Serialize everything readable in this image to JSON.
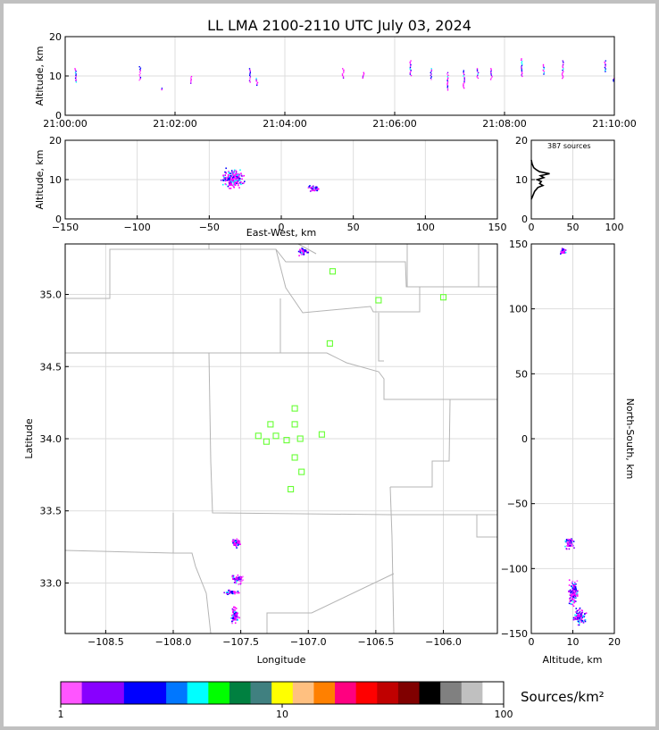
{
  "figure": {
    "title": "LL LMA 2100-2110 UTC July 03, 2024"
  },
  "chart_data": [
    {
      "panel": "altitude-time",
      "type": "scatter",
      "ylabel": "Altitude, km",
      "ylim": [
        0,
        20
      ],
      "yticks": [
        "0",
        "10",
        "20"
      ],
      "xticks": [
        "21:00:00",
        "21:02:00",
        "21:04:00",
        "21:06:00",
        "21:08:00",
        "21:10:00"
      ],
      "xlim_minutes": [
        0,
        10
      ],
      "grid": true,
      "clusters": [
        {
          "t": 0.18,
          "zmin": 8.5,
          "zmax": 12.0
        },
        {
          "t": 1.35,
          "zmin": 9.0,
          "zmax": 12.5
        },
        {
          "t": 1.75,
          "zmin": 6.5,
          "zmax": 7.0
        },
        {
          "t": 2.28,
          "zmin": 8.0,
          "zmax": 10.0
        },
        {
          "t": 3.35,
          "zmin": 8.5,
          "zmax": 12.0
        },
        {
          "t": 3.48,
          "zmin": 7.5,
          "zmax": 9.5
        },
        {
          "t": 5.05,
          "zmin": 9.5,
          "zmax": 12.0
        },
        {
          "t": 5.42,
          "zmin": 9.5,
          "zmax": 11.0
        },
        {
          "t": 6.28,
          "zmin": 10.0,
          "zmax": 14.0
        },
        {
          "t": 6.65,
          "zmin": 9.0,
          "zmax": 12.0
        },
        {
          "t": 6.95,
          "zmin": 6.5,
          "zmax": 11.0
        },
        {
          "t": 7.25,
          "zmin": 7.0,
          "zmax": 11.5
        },
        {
          "t": 7.5,
          "zmin": 9.5,
          "zmax": 12.0
        },
        {
          "t": 7.75,
          "zmin": 9.0,
          "zmax": 12.0
        },
        {
          "t": 8.3,
          "zmin": 10.0,
          "zmax": 14.5
        },
        {
          "t": 8.7,
          "zmin": 10.5,
          "zmax": 13.0
        },
        {
          "t": 9.05,
          "zmin": 9.5,
          "zmax": 14.0
        },
        {
          "t": 9.82,
          "zmin": 11.0,
          "zmax": 14.0
        },
        {
          "t": 9.98,
          "zmin": 8.5,
          "zmax": 9.5
        }
      ]
    },
    {
      "panel": "altitude-eastwest",
      "type": "scatter",
      "ylabel": "Altitude, km",
      "xlabel": "East-West, km",
      "ylim": [
        0,
        20
      ],
      "xlim": [
        -150,
        150
      ],
      "yticks": [
        "0",
        "10",
        "20"
      ],
      "xticks": [
        "−150",
        "−100",
        "−50",
        "0",
        "50",
        "100",
        "150"
      ],
      "grid": true,
      "clusters": [
        {
          "x": -34,
          "z": 10.5,
          "rx": 10,
          "rz": 3
        },
        {
          "x": -31,
          "z": 11.0,
          "rx": 2,
          "rz": 1
        },
        {
          "x": 22,
          "z": 8.0,
          "rx": 5,
          "rz": 1
        }
      ]
    },
    {
      "panel": "altitude-histogram",
      "type": "line",
      "annotation": "387 sources",
      "xlim": [
        0,
        100
      ],
      "ylim": [
        0,
        20
      ],
      "xticks": [
        "0",
        "50",
        "100"
      ],
      "yticks": [
        "0",
        "10",
        "20"
      ],
      "grid": true,
      "profile": [
        {
          "z": 5,
          "n": 0
        },
        {
          "z": 6,
          "n": 2
        },
        {
          "z": 7,
          "n": 4
        },
        {
          "z": 8,
          "n": 8
        },
        {
          "z": 8.5,
          "n": 14
        },
        {
          "z": 9,
          "n": 10
        },
        {
          "z": 9.5,
          "n": 12
        },
        {
          "z": 10,
          "n": 7
        },
        {
          "z": 10.5,
          "n": 15
        },
        {
          "z": 11,
          "n": 11
        },
        {
          "z": 11.5,
          "n": 22
        },
        {
          "z": 12,
          "n": 10
        },
        {
          "z": 12.5,
          "n": 6
        },
        {
          "z": 13,
          "n": 3
        },
        {
          "z": 14,
          "n": 1
        },
        {
          "z": 15,
          "n": 0
        }
      ]
    },
    {
      "panel": "plan-view",
      "type": "scatter",
      "xlabel": "Longitude",
      "ylabel": "Latitude",
      "xlim": [
        -108.8,
        -105.6
      ],
      "ylim": [
        32.65,
        35.35
      ],
      "xticks": [
        "−108.5",
        "−108.0",
        "−107.5",
        "−107.0",
        "−106.5",
        "−106.0"
      ],
      "yticks": [
        "33.0",
        "33.5",
        "34.0",
        "34.5",
        "35.0"
      ],
      "grid": true,
      "stations": [
        {
          "lon": -106.82,
          "lat": 35.16
        },
        {
          "lon": -106.48,
          "lat": 34.96
        },
        {
          "lon": -106.0,
          "lat": 34.98
        },
        {
          "lon": -106.84,
          "lat": 34.66
        },
        {
          "lon": -107.1,
          "lat": 34.21
        },
        {
          "lon": -107.28,
          "lat": 34.1
        },
        {
          "lon": -107.1,
          "lat": 34.1
        },
        {
          "lon": -107.37,
          "lat": 34.02
        },
        {
          "lon": -107.24,
          "lat": 34.02
        },
        {
          "lon": -107.31,
          "lat": 33.98
        },
        {
          "lon": -107.16,
          "lat": 33.99
        },
        {
          "lon": -107.06,
          "lat": 34.0
        },
        {
          "lon": -106.9,
          "lat": 34.03
        },
        {
          "lon": -107.1,
          "lat": 33.87
        },
        {
          "lon": -107.05,
          "lat": 33.77
        },
        {
          "lon": -107.13,
          "lat": 33.65
        }
      ],
      "clusters": [
        {
          "lon": -107.54,
          "lat": 33.28,
          "rlon": 0.05,
          "rlat": 0.04
        },
        {
          "lon": -107.53,
          "lat": 33.03,
          "rlon": 0.06,
          "rlat": 0.04
        },
        {
          "lon": -107.58,
          "lat": 32.94,
          "rlon": 0.07,
          "rlat": 0.02
        },
        {
          "lon": -107.55,
          "lat": 32.78,
          "rlon": 0.04,
          "rlat": 0.08
        },
        {
          "lon": -107.05,
          "lat": 35.3,
          "rlon": 0.05,
          "rlat": 0.03
        }
      ]
    },
    {
      "panel": "northsouth-altitude",
      "type": "scatter",
      "xlabel": "Altitude, km",
      "ylabel": "North-South, km",
      "xlim": [
        0,
        20
      ],
      "ylim": [
        -150,
        150
      ],
      "xticks": [
        "0",
        "10",
        "20"
      ],
      "yticks": [
        "−150",
        "−100",
        "−50",
        "0",
        "50",
        "100",
        "150"
      ],
      "grid": true,
      "clusters": [
        {
          "z": 7.5,
          "y": 145,
          "rz": 1,
          "ry": 3
        },
        {
          "z": 9.0,
          "y": -80,
          "rz": 1.5,
          "ry": 6
        },
        {
          "z": 10.0,
          "y": -118,
          "rz": 1.5,
          "ry": 14
        },
        {
          "z": 11.5,
          "y": -137,
          "rz": 2,
          "ry": 8
        }
      ]
    },
    {
      "panel": "colorbar",
      "type": "heatmap",
      "label": "Sources/km²",
      "scale": "log",
      "ticks": [
        "1",
        "10",
        "100"
      ],
      "colors": [
        "#ff55ff",
        "#8800ff",
        "#8800ff",
        "#0000ff",
        "#0000ff",
        "#0077ff",
        "#00ffff",
        "#00ff00",
        "#008040",
        "#408080",
        "#ffff00",
        "#ffc080",
        "#ff8000",
        "#ff0080",
        "#ff0000",
        "#c00000",
        "#800000",
        "#000000",
        "#808080",
        "#c0c0c0",
        "#ffffff"
      ]
    }
  ]
}
